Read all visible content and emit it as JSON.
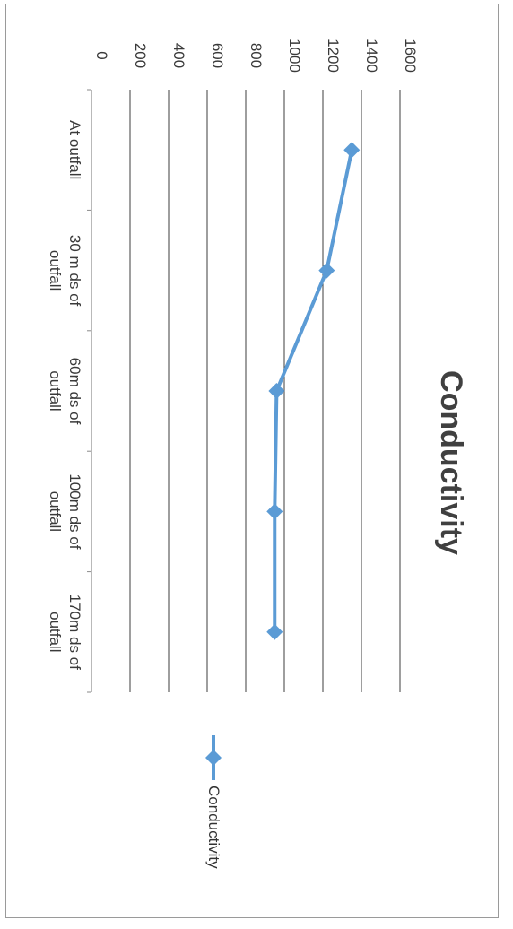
{
  "chart_data": {
    "type": "line",
    "title": "Conductivity",
    "categories": [
      [
        "At outfall"
      ],
      [
        "30 m ds of",
        "outfall"
      ],
      [
        "60m ds of",
        "outfall"
      ],
      [
        "100m ds of",
        "outfall"
      ],
      [
        "170m ds of",
        "outfall"
      ]
    ],
    "series": [
      {
        "name": "Conductivity",
        "values": [
          1350,
          1220,
          960,
          950,
          950
        ],
        "color": "#5b9bd5"
      }
    ],
    "ylim": [
      0,
      1600
    ],
    "y_ticks": [
      0,
      200,
      400,
      600,
      800,
      1000,
      1200,
      1400,
      1600
    ],
    "grid": true,
    "legend_position": "right",
    "orientation": "rotated 90 degrees clockwise"
  }
}
